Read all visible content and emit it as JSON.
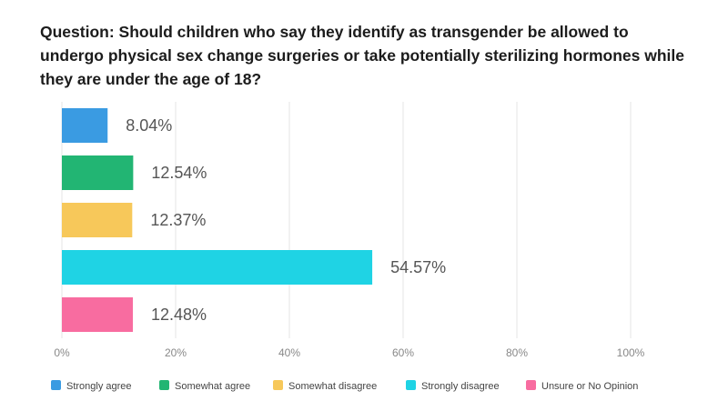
{
  "question": "Question: Should children who say they identify as transgender be allowed to undergo physical sex change surgeries or take potentially sterilizing hormones while they are under the age of 18?",
  "chart_data": {
    "type": "bar",
    "orientation": "horizontal",
    "title": "Question: Should children who say they identify as transgender be allowed to undergo physical sex change surgeries or take potentially sterilizing hormones while they are under the age of 18?",
    "categories": [
      "Strongly agree",
      "Somewhat agree",
      "Somewhat disagree",
      "Strongly disagree",
      "Unsure or No Opinion"
    ],
    "values": [
      8.04,
      12.54,
      12.37,
      54.57,
      12.48
    ],
    "data_labels": [
      "8.04%",
      "12.54%",
      "12.37%",
      "54.57%",
      "12.48%"
    ],
    "colors": [
      "#3a9be2",
      "#22b573",
      "#f7c85a",
      "#1fd3e4",
      "#f86ca0"
    ],
    "xlim": [
      0,
      100
    ],
    "x_ticks": [
      0,
      20,
      40,
      60,
      80,
      100
    ],
    "x_tick_labels": [
      "0%",
      "20%",
      "40%",
      "60%",
      "80%",
      "100%"
    ],
    "grid": true,
    "legend_position": "bottom"
  }
}
